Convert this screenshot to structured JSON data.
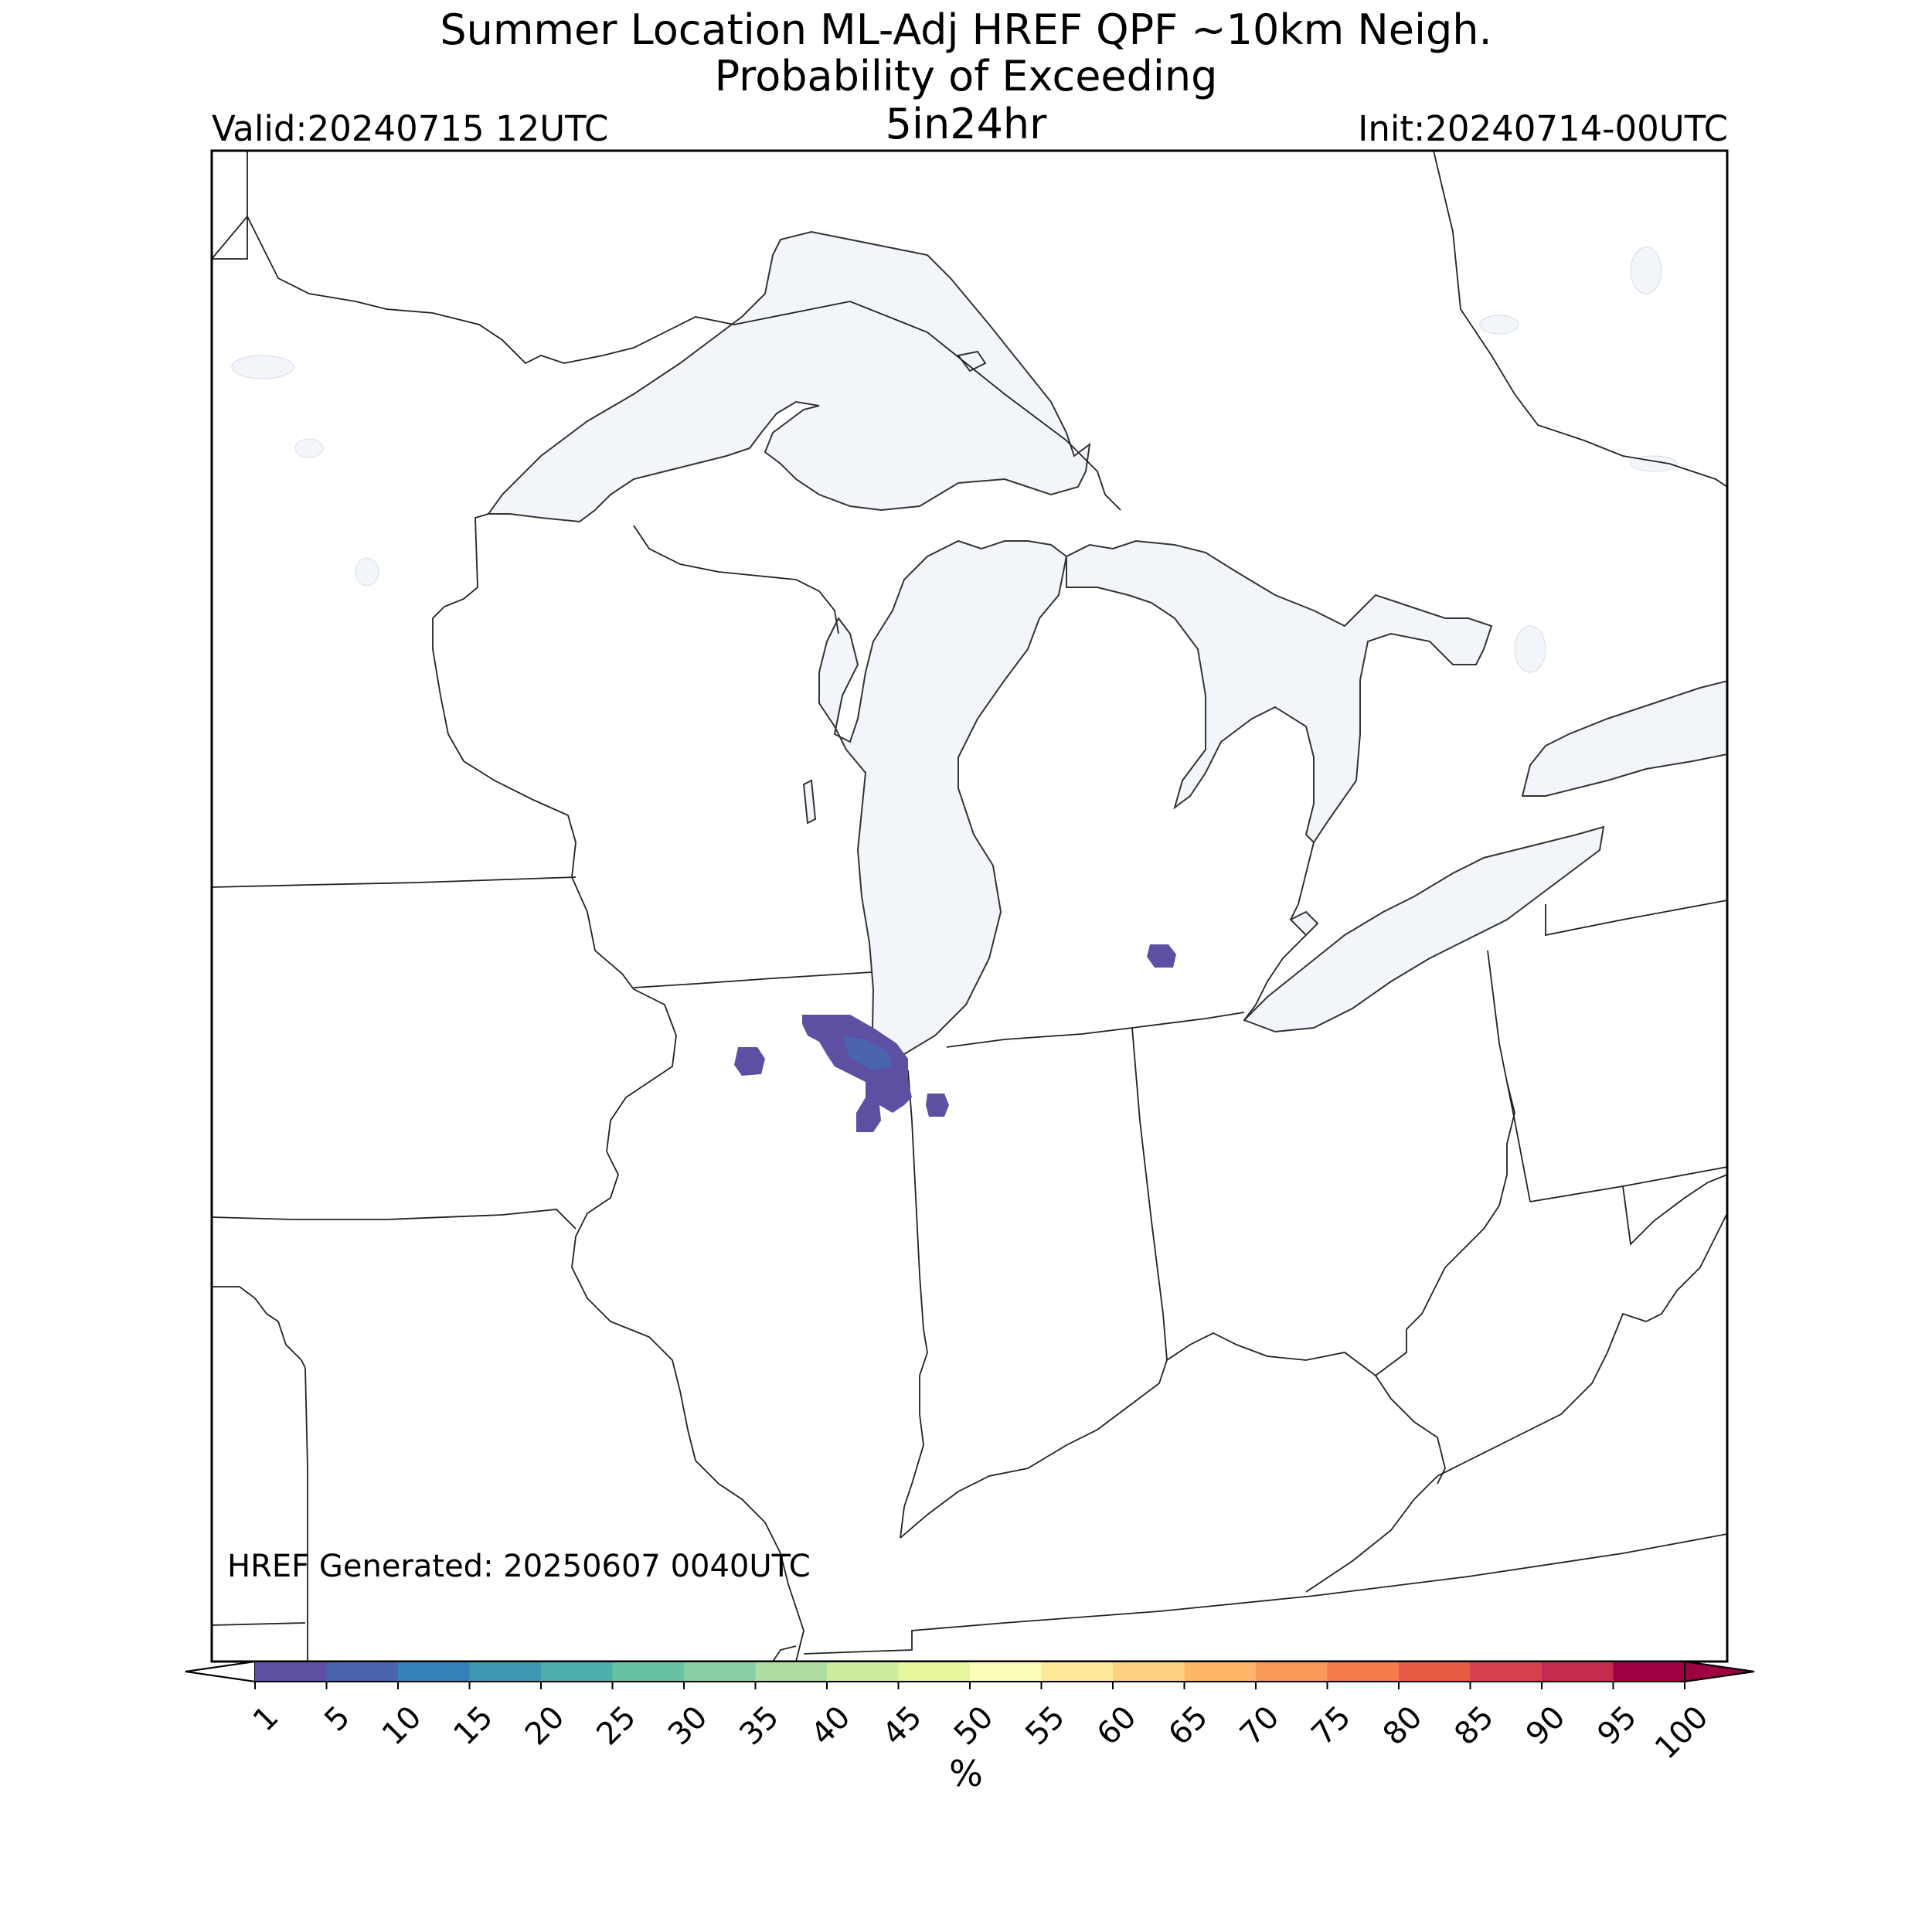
{
  "title": {
    "line1": "Summer Location ML-Adj HREF QPF ~10km Neigh.",
    "line2": "Probability of Exceeding",
    "threshold": "5in24hr"
  },
  "valid_label": "Valid:20240715 12UTC",
  "init_label": "Init:20240714-00UTC",
  "generated_label": "HREF Generated: 20250607 0040UTC",
  "colorbar": {
    "unit": "%",
    "ticks": [
      "1",
      "5",
      "10",
      "15",
      "20",
      "25",
      "30",
      "35",
      "40",
      "45",
      "50",
      "55",
      "60",
      "65",
      "70",
      "75",
      "80",
      "85",
      "90",
      "95",
      "100"
    ],
    "colors": [
      "#5e4fa2",
      "#4a64ad",
      "#3681b9",
      "#3d98b3",
      "#4daeae",
      "#69c1a4",
      "#89cfa5",
      "#b0dda1",
      "#cfec9e",
      "#e8f69d",
      "#fbfcb8",
      "#fee89a",
      "#fed081",
      "#fdb668",
      "#fb9a58",
      "#f57a4c",
      "#e85c46",
      "#d6404e",
      "#c42b4f",
      "#9e0142"
    ]
  },
  "map": {
    "water_color": "#f2f6fb",
    "region": "Great Lakes / Midwest",
    "probability_areas": [
      {
        "name": "northern-illinois-chicago",
        "level": "1-10%"
      },
      {
        "name": "rockford-area",
        "level": "1-5%"
      },
      {
        "name": "northwest-indiana",
        "level": "1-5%"
      },
      {
        "name": "central-michigan",
        "level": "1-5%"
      }
    ]
  }
}
